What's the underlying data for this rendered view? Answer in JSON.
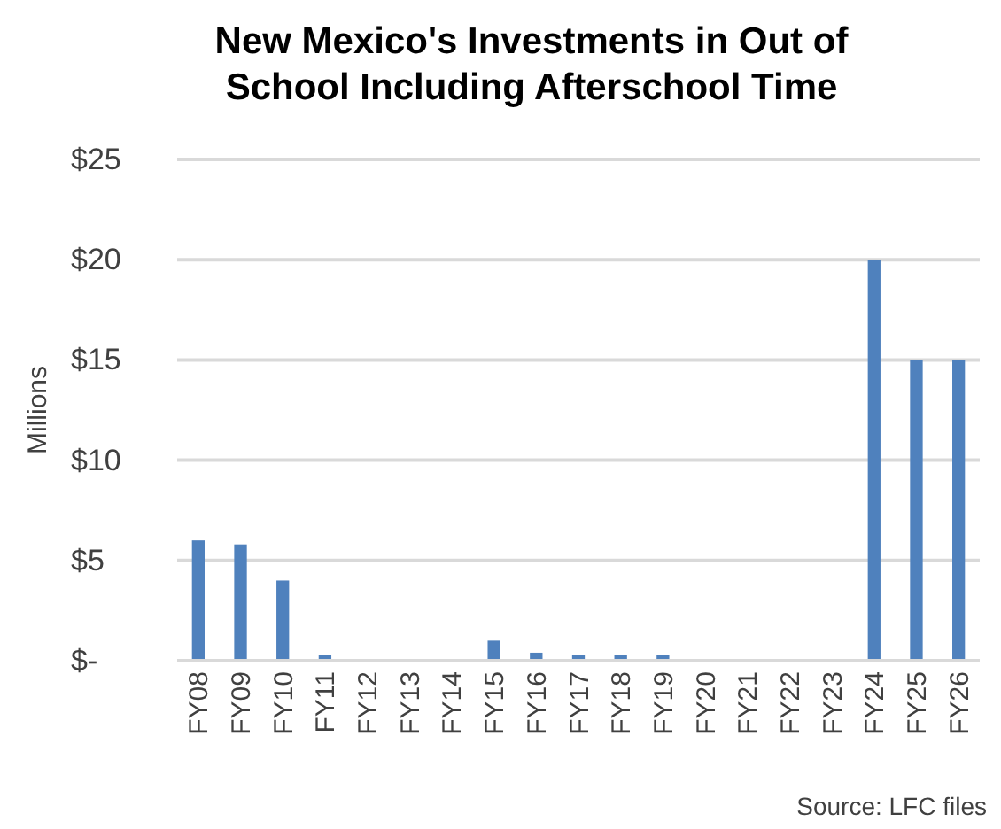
{
  "chart_data": {
    "type": "bar",
    "title": "New Mexico's Investments in Out of School Including Afterschool Time",
    "ylabel": "Millions",
    "categories": [
      "FY08",
      "FY09",
      "FY10",
      "FY11",
      "FY12",
      "FY13",
      "FY14",
      "FY15",
      "FY16",
      "FY17",
      "FY18",
      "FY19",
      "FY20",
      "FY21",
      "FY22",
      "FY23",
      "FY24",
      "FY25",
      "FY26"
    ],
    "values": [
      6,
      5.8,
      4,
      0.3,
      0,
      0,
      0,
      1,
      0.4,
      0.3,
      0.3,
      0.3,
      0,
      0,
      0,
      0,
      20,
      15,
      15
    ],
    "color": "#4f81bd",
    "ylim": [
      0,
      25
    ],
    "yticks": [
      {
        "value": 0,
        "label": "$-"
      },
      {
        "value": 5,
        "label": "$5"
      },
      {
        "value": 10,
        "label": "$10"
      },
      {
        "value": 15,
        "label": "$15"
      },
      {
        "value": 20,
        "label": "$20"
      },
      {
        "value": 25,
        "label": "$25"
      }
    ],
    "grid": "y",
    "annotations": [
      "Source: LFC files"
    ]
  }
}
